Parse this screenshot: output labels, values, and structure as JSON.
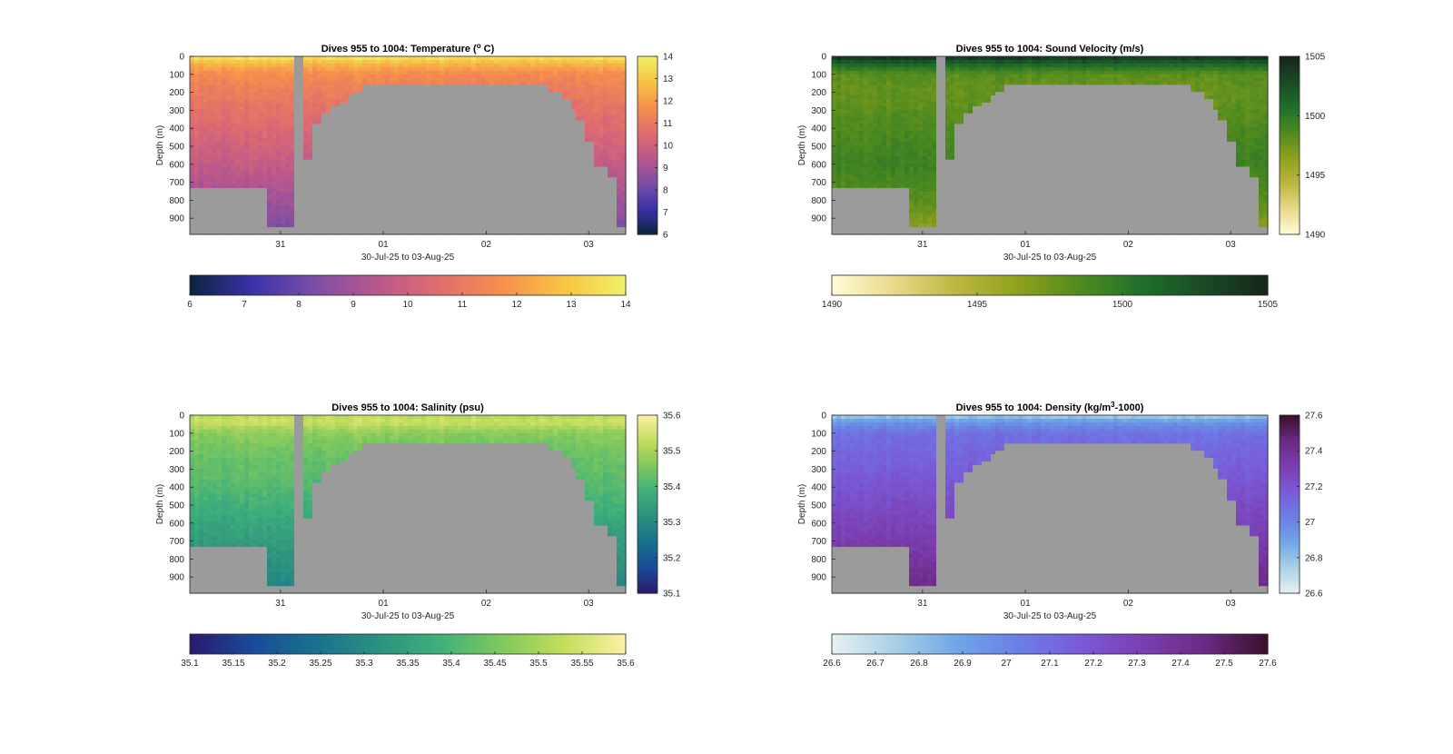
{
  "figure": {
    "background": "#ffffff",
    "missing_color": "#9b9b9b"
  },
  "chart_data": [
    {
      "type": "heatmap",
      "title": "Dives 955 to 1004: Temperature (° C)",
      "title_parts": {
        "pre": "Dives 955 to 1004: Temperature (",
        "sup": "o",
        "post": " C)"
      },
      "xlabel": "30-Jul-25 to 03-Aug-25",
      "ylabel": "Depth (m)",
      "x_tick_labels": [
        "31",
        "01",
        "02",
        "03"
      ],
      "y_tick_labels": [
        "0",
        "100",
        "200",
        "300",
        "400",
        "500",
        "600",
        "700",
        "800",
        "900"
      ],
      "ylim": [
        0,
        990
      ],
      "colormap": "thermal",
      "colormap_stops": [
        "#0b2440",
        "#3a32a8",
        "#7c4ea6",
        "#b9578d",
        "#e06d6d",
        "#f58f4c",
        "#f6c443",
        "#f1f067"
      ],
      "clim": [
        6,
        14
      ],
      "vertical_colorbar_ticks": [
        "6",
        "7",
        "8",
        "9",
        "10",
        "11",
        "12",
        "13",
        "14"
      ],
      "horizontal_colorbar_ticks": [
        "6",
        "7",
        "8",
        "9",
        "10",
        "11",
        "12",
        "13",
        "14"
      ],
      "profile": [
        {
          "depth": 0,
          "value": 13.8
        },
        {
          "depth": 40,
          "value": 12.6
        },
        {
          "depth": 100,
          "value": 11.6
        },
        {
          "depth": 200,
          "value": 11.1
        },
        {
          "depth": 400,
          "value": 10.4
        },
        {
          "depth": 600,
          "value": 9.7
        },
        {
          "depth": 800,
          "value": 8.9
        },
        {
          "depth": 990,
          "value": 8.1
        }
      ]
    },
    {
      "type": "heatmap",
      "title": "Dives 955 to 1004: Sound Velocity (m/s)",
      "xlabel": "30-Jul-25 to 03-Aug-25",
      "ylabel": "Depth (m)",
      "x_tick_labels": [
        "31",
        "01",
        "02",
        "03"
      ],
      "y_tick_labels": [
        "0",
        "100",
        "200",
        "300",
        "400",
        "500",
        "600",
        "700",
        "800",
        "900"
      ],
      "ylim": [
        0,
        990
      ],
      "colormap": "speed",
      "colormap_stops": [
        "#fffbd6",
        "#e8d98a",
        "#bcb640",
        "#8fa11c",
        "#4f8a1f",
        "#1e6f2b",
        "#1a4a26",
        "#16261a"
      ],
      "clim": [
        1490,
        1505
      ],
      "vertical_colorbar_ticks": [
        "1490",
        "1495",
        "1500",
        "1505"
      ],
      "horizontal_colorbar_ticks": [
        "1490",
        "1495",
        "1500",
        "1505"
      ],
      "profile": [
        {
          "depth": 0,
          "value": 1504.5
        },
        {
          "depth": 40,
          "value": 1501.5
        },
        {
          "depth": 100,
          "value": 1498.2
        },
        {
          "depth": 200,
          "value": 1497.8
        },
        {
          "depth": 400,
          "value": 1498.6
        },
        {
          "depth": 600,
          "value": 1499.3
        },
        {
          "depth": 800,
          "value": 1498.2
        },
        {
          "depth": 990,
          "value": 1496.0
        }
      ]
    },
    {
      "type": "heatmap",
      "title": "Dives 955 to 1004: Salinity (psu)",
      "xlabel": "30-Jul-25 to 03-Aug-25",
      "ylabel": "Depth (m)",
      "x_tick_labels": [
        "31",
        "01",
        "02",
        "03"
      ],
      "y_tick_labels": [
        "0",
        "100",
        "200",
        "300",
        "400",
        "500",
        "600",
        "700",
        "800",
        "900"
      ],
      "ylim": [
        0,
        990
      ],
      "colormap": "haline",
      "colormap_stops": [
        "#2a1a6e",
        "#1a4a98",
        "#18708c",
        "#2b9080",
        "#3fb07a",
        "#7fc85d",
        "#c2dd5c",
        "#fdf0a6"
      ],
      "clim": [
        35.1,
        35.6
      ],
      "vertical_colorbar_ticks": [
        "35.1",
        "35.2",
        "35.3",
        "35.4",
        "35.5",
        "35.6"
      ],
      "horizontal_colorbar_ticks": [
        "35.1",
        "35.15",
        "35.2",
        "35.25",
        "35.3",
        "35.35",
        "35.4",
        "35.45",
        "35.5",
        "35.55",
        "35.6"
      ],
      "profile": [
        {
          "depth": 0,
          "value": 35.52
        },
        {
          "depth": 40,
          "value": 35.54
        },
        {
          "depth": 100,
          "value": 35.47
        },
        {
          "depth": 200,
          "value": 35.44
        },
        {
          "depth": 400,
          "value": 35.41
        },
        {
          "depth": 600,
          "value": 35.36
        },
        {
          "depth": 800,
          "value": 35.32
        },
        {
          "depth": 990,
          "value": 35.28
        }
      ]
    },
    {
      "type": "heatmap",
      "title": "Dives 955 to 1004: Density (kg/m³-1000)",
      "title_parts": {
        "pre": "Dives 955 to 1004: Density (kg/m",
        "sup": "3",
        "post": "-1000)"
      },
      "xlabel": "30-Jul-25 to 03-Aug-25",
      "ylabel": "Depth (m)",
      "x_tick_labels": [
        "31",
        "01",
        "02",
        "03"
      ],
      "y_tick_labels": [
        "0",
        "100",
        "200",
        "300",
        "400",
        "500",
        "600",
        "700",
        "800",
        "900"
      ],
      "ylim": [
        0,
        990
      ],
      "colormap": "dense",
      "colormap_stops": [
        "#e6f1f1",
        "#a9d1e6",
        "#6fa6e6",
        "#6b7ee6",
        "#7a5ad8",
        "#7b3eb0",
        "#6a2a82",
        "#3a0f2a"
      ],
      "clim": [
        26.6,
        27.6
      ],
      "vertical_colorbar_ticks": [
        "26.6",
        "26.8",
        "27",
        "27.2",
        "27.4",
        "27.6"
      ],
      "horizontal_colorbar_ticks": [
        "26.6",
        "26.7",
        "26.8",
        "26.9",
        "27",
        "27.1",
        "27.2",
        "27.3",
        "27.4",
        "27.5",
        "27.6"
      ],
      "profile": [
        {
          "depth": 0,
          "value": 26.75
        },
        {
          "depth": 40,
          "value": 26.95
        },
        {
          "depth": 100,
          "value": 27.08
        },
        {
          "depth": 200,
          "value": 27.12
        },
        {
          "depth": 400,
          "value": 27.2
        },
        {
          "depth": 600,
          "value": 27.28
        },
        {
          "depth": 800,
          "value": 27.36
        },
        {
          "depth": 990,
          "value": 27.45
        }
      ]
    }
  ]
}
